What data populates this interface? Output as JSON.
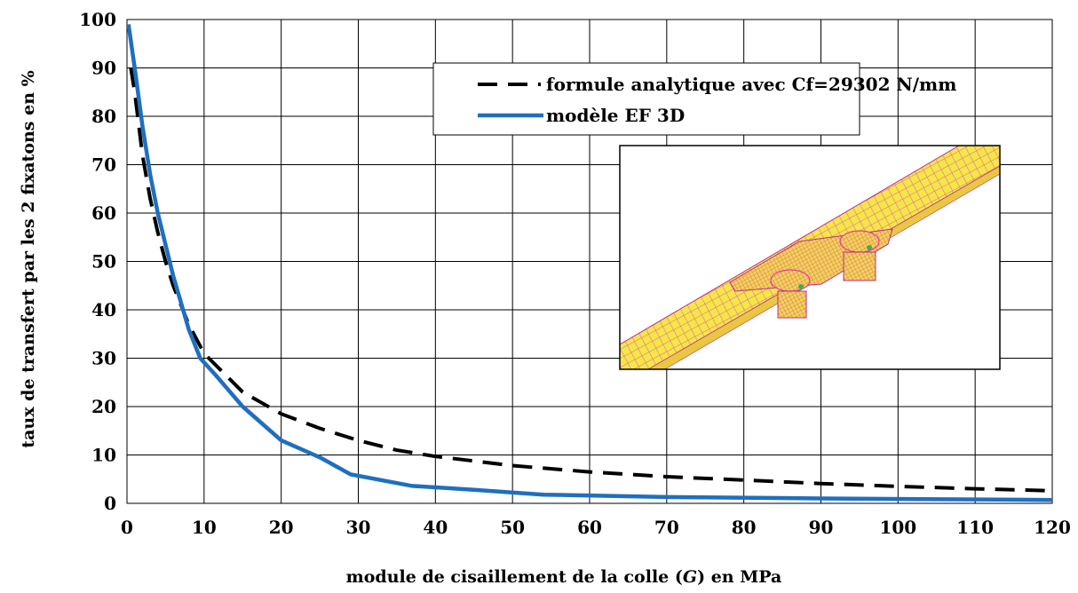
{
  "chart_data": {
    "type": "line",
    "title": "",
    "xlabel": "module de cisaillement de la colle  (G) en MPa",
    "xlabel_parts": {
      "before": "module de cisaillement de la colle  (",
      "symbol": "G",
      "after": ") en MPa"
    },
    "ylabel": "taux de transfert par les 2 fixatons en %",
    "xlim": [
      0,
      120
    ],
    "ylim": [
      0,
      100
    ],
    "xticks": [
      0,
      10,
      20,
      30,
      40,
      50,
      60,
      70,
      80,
      90,
      100,
      110,
      120
    ],
    "yticks": [
      0,
      10,
      20,
      30,
      40,
      50,
      60,
      70,
      80,
      90,
      100
    ],
    "grid": true,
    "legend_position": "top-right",
    "series": [
      {
        "name": "formule analytique avec Cf=29302 N/mm",
        "color": "#000000",
        "style": "dashed",
        "points": [
          [
            0.5,
            90
          ],
          [
            1,
            85
          ],
          [
            2,
            72
          ],
          [
            3,
            63
          ],
          [
            4,
            56
          ],
          [
            5,
            50
          ],
          [
            6,
            45
          ],
          [
            8,
            37
          ],
          [
            10,
            31
          ],
          [
            15,
            23
          ],
          [
            20,
            18.5
          ],
          [
            25,
            15.5
          ],
          [
            30,
            13
          ],
          [
            35,
            11
          ],
          [
            40,
            9.7
          ],
          [
            50,
            7.8
          ],
          [
            60,
            6.5
          ],
          [
            70,
            5.5
          ],
          [
            80,
            4.8
          ],
          [
            90,
            4.1
          ],
          [
            100,
            3.5
          ],
          [
            110,
            3.0
          ],
          [
            120,
            2.6
          ]
        ]
      },
      {
        "name": "modèle EF 3D",
        "color": "#1f6fbf",
        "style": "solid",
        "points": [
          [
            0.2,
            99
          ],
          [
            1,
            90
          ],
          [
            2,
            78
          ],
          [
            3,
            68
          ],
          [
            4,
            60
          ],
          [
            6,
            47
          ],
          [
            8,
            36
          ],
          [
            9.5,
            30
          ],
          [
            11.5,
            26.5
          ],
          [
            15,
            20
          ],
          [
            20,
            13
          ],
          [
            25,
            9.5
          ],
          [
            29,
            6
          ],
          [
            37,
            3.6
          ],
          [
            45,
            2.8
          ],
          [
            54,
            1.8
          ],
          [
            70,
            1.3
          ],
          [
            90,
            1.0
          ],
          [
            120,
            0.7
          ]
        ]
      }
    ]
  },
  "inset": {
    "description_icon": "fe-mesh-image",
    "colors": {
      "mesh_fill": "#f5e64a",
      "mesh_lines": "#e23aa8",
      "highlight": "#3bb04a"
    }
  }
}
